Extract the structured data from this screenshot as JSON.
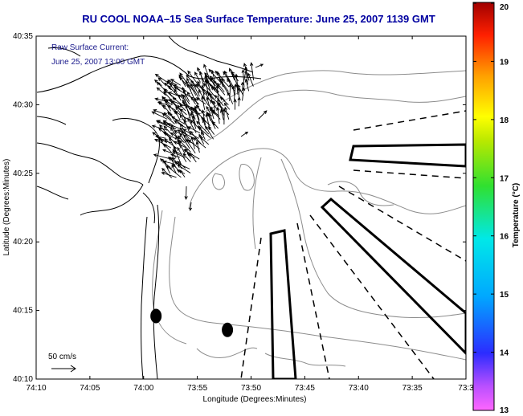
{
  "title": "RU COOL   NOAA–15  Sea Surface Temperature:  June 25, 2007 1139 GMT",
  "annotation_line1": "Raw Surface Current:",
  "annotation_line2": "June 25, 2007 13:00 GMT",
  "scale_label": "50 cm/s",
  "xlabel": "Longitude (Degrees:Minutes)",
  "ylabel": "Latitude (Degrees:Minutes)",
  "x_ticks": [
    "74:10",
    "74:05",
    "74:00",
    "73:55",
    "73:50",
    "73:45",
    "73:40",
    "73:35",
    "73:3"
  ],
  "y_ticks": [
    "40:35",
    "40:30",
    "40:25",
    "40:20",
    "40:15",
    "40:10"
  ],
  "colorbar": {
    "label": "Temperature (°C)",
    "ticks": [
      "20",
      "19",
      "18",
      "17",
      "16",
      "15",
      "14",
      "13"
    ],
    "min": 13,
    "max": 20
  },
  "map_features": [
    "coastline",
    "bathymetry-contours",
    "surface-current-vectors",
    "shipping-lanes",
    "buoys"
  ],
  "chart_data": {
    "type": "map",
    "title": "RU COOL   NOAA–15  Sea Surface Temperature:  June 25, 2007 1139 GMT",
    "xlabel": "Longitude (Degrees:Minutes)",
    "ylabel": "Latitude (Degrees:Minutes)",
    "xlim": [
      -74.1667,
      -73.5
    ],
    "ylim": [
      40.1667,
      40.5833
    ],
    "buoys": [
      {
        "lon": -73.9808,
        "lat": 40.2433
      },
      {
        "lon": -73.87,
        "lat": 40.2264
      }
    ]
  }
}
